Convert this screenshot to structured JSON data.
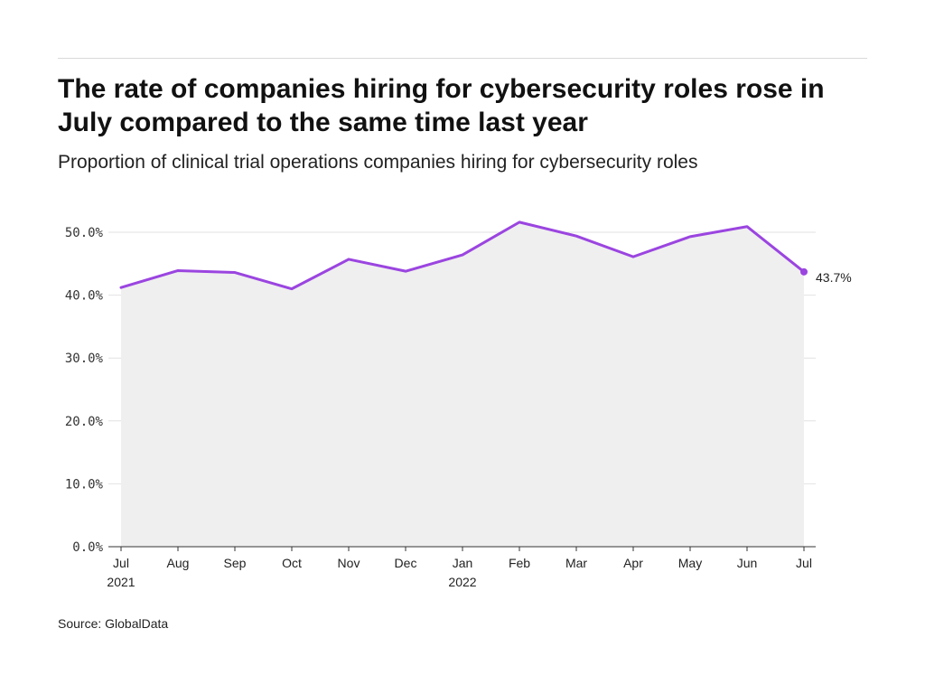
{
  "header": {
    "title": "The rate of companies hiring for cybersecurity roles rose in July compared to the same time last year",
    "subtitle": "Proportion of clinical trial operations companies hiring for cybersecurity roles"
  },
  "footer": {
    "source": "Source: GlobalData"
  },
  "colors": {
    "line": "#9b45e0",
    "area": "#efefef",
    "grid": "#e2e2e2",
    "axis": "#333333"
  },
  "chart_data": {
    "type": "area",
    "x": [
      "Jul",
      "Aug",
      "Sep",
      "Oct",
      "Nov",
      "Dec",
      "Jan",
      "Feb",
      "Mar",
      "Apr",
      "May",
      "Jun",
      "Jul"
    ],
    "x_year_labels": [
      "2021",
      "",
      "",
      "",
      "",
      "",
      "2022",
      "",
      "",
      "",
      "",
      "",
      ""
    ],
    "series": [
      {
        "values": [
          41.2,
          43.9,
          43.6,
          41.0,
          45.7,
          43.8,
          46.4,
          51.6,
          49.4,
          46.1,
          49.3,
          50.9,
          43.7
        ]
      }
    ],
    "y_ticks": [
      "0.0%",
      "10.0%",
      "20.0%",
      "30.0%",
      "40.0%",
      "50.0%"
    ],
    "ylim": [
      0,
      50
    ],
    "end_label": "43.7%",
    "grid": true
  }
}
